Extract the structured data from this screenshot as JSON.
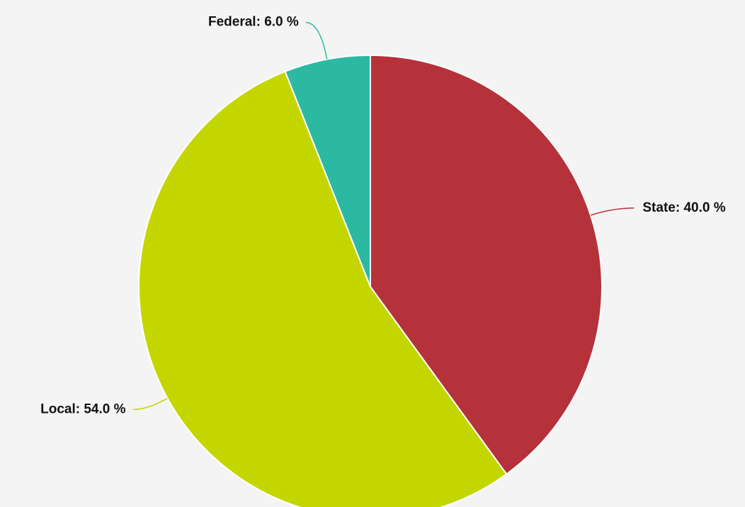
{
  "chart_data": {
    "type": "pie",
    "values": [
      40,
      54,
      6
    ],
    "value_labels": [
      "State: 40.0 %",
      "Local: 54.0 %",
      "Federal: 6.0 %"
    ],
    "colors": [
      "#b5323a",
      "#c4d600",
      "#2bb9a2"
    ]
  }
}
